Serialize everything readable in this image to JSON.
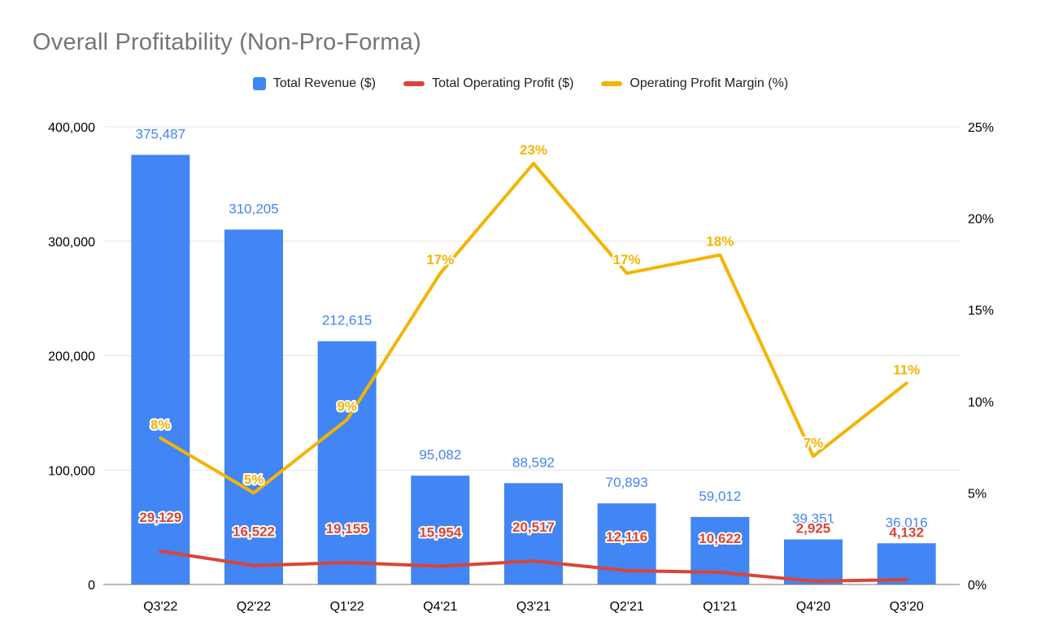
{
  "chart_data": {
    "type": "bar",
    "title": "Overall Profitability (Non-Pro-Forma)",
    "categories": [
      "Q3'22",
      "Q2'22",
      "Q1'22",
      "Q4'21",
      "Q3'21",
      "Q2'21",
      "Q1'21",
      "Q4'20",
      "Q3'20"
    ],
    "series": [
      {
        "name": "Total Revenue ($)",
        "kind": "bar",
        "axis": "left",
        "color": "#4285F4",
        "values": [
          375487,
          310205,
          212615,
          95082,
          88592,
          70893,
          59012,
          39351,
          36016
        ],
        "labels": [
          "375,487",
          "310,205",
          "212,615",
          "95,082",
          "88,592",
          "70,893",
          "59,012",
          "39,351",
          "36,016"
        ]
      },
      {
        "name": "Total Operating Profit ($)",
        "kind": "line",
        "axis": "left",
        "color": "#DB4437",
        "values": [
          29129,
          16522,
          19155,
          15954,
          20517,
          12116,
          10622,
          2925,
          4132
        ],
        "labels": [
          "29,129",
          "16,522",
          "19,155",
          "15,954",
          "20,517",
          "12,116",
          "10,622",
          "2,925",
          "4,132"
        ]
      },
      {
        "name": "Operating Profit Margin (%)",
        "kind": "line",
        "axis": "right",
        "color": "#F4B400",
        "values": [
          8,
          5,
          9,
          17,
          23,
          17,
          18,
          7,
          11
        ],
        "labels": [
          "8%",
          "5%",
          "9%",
          "17%",
          "23%",
          "17%",
          "18%",
          "7%",
          "11%"
        ]
      }
    ],
    "left_axis": {
      "min": 0,
      "max": 400000,
      "tick_values": [
        0,
        100000,
        200000,
        300000,
        400000
      ],
      "tick_labels": [
        "0",
        "100,000",
        "200,000",
        "300,000",
        "400,000"
      ]
    },
    "right_axis": {
      "min": 0,
      "max": 25,
      "tick_values": [
        0,
        5,
        10,
        15,
        20,
        25
      ],
      "tick_labels": [
        "0%",
        "5%",
        "10%",
        "15%",
        "20%",
        "25%"
      ]
    },
    "grid": true,
    "legend_position": "top",
    "colors": {
      "grid": "#e3e3e3",
      "axis_baseline": "#757575",
      "title": "#757575",
      "tick_text": "#000000"
    }
  }
}
